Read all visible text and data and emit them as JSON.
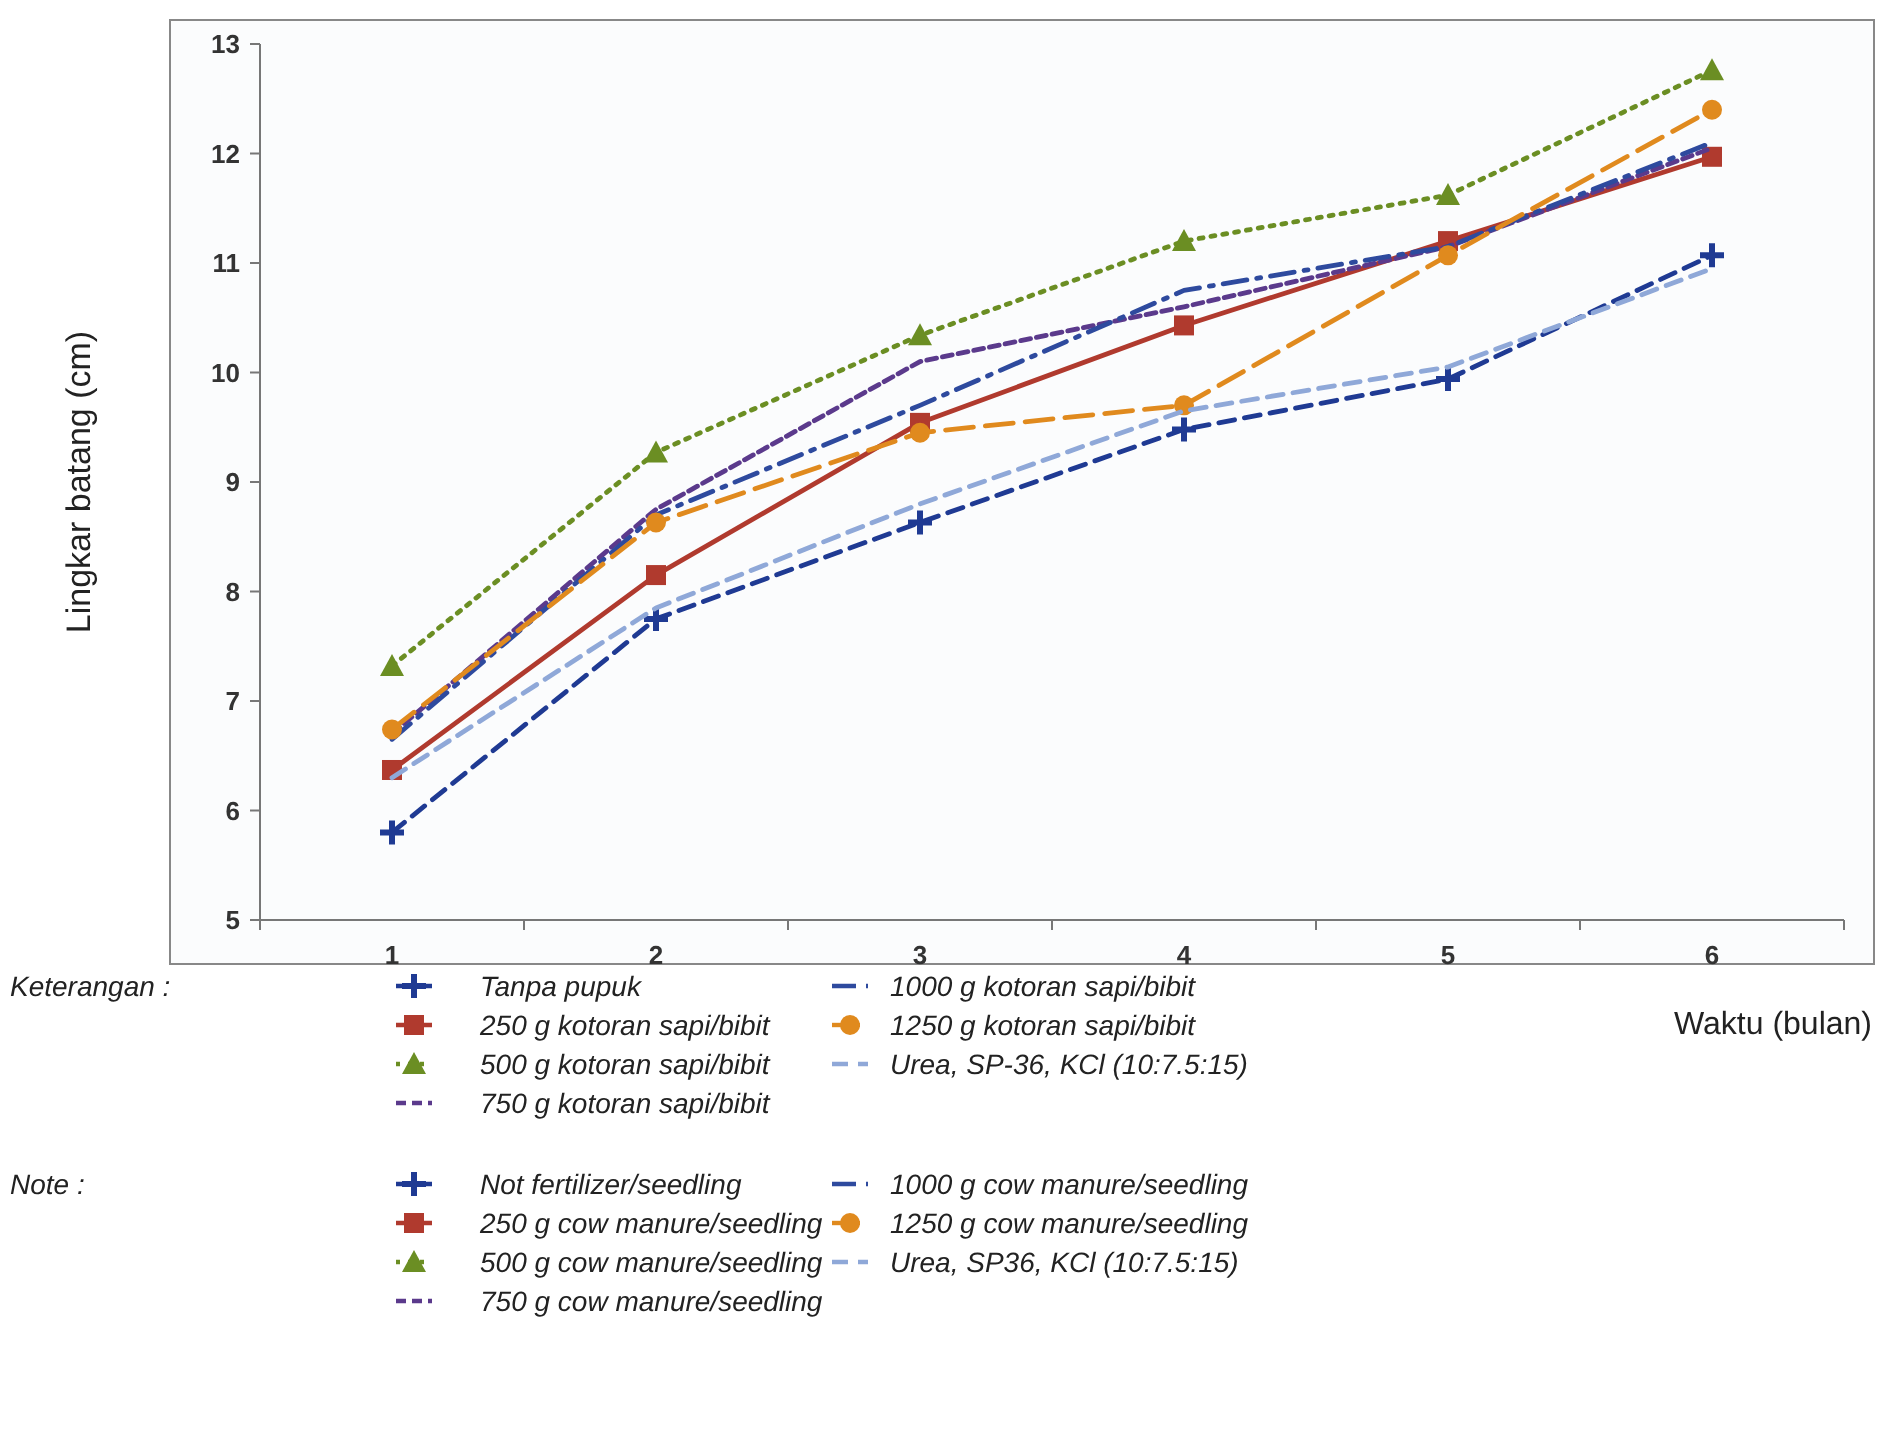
{
  "chart_data": {
    "type": "line",
    "xlabel": "Waktu (bulan)",
    "ylabel": "Lingkar batang (cm)",
    "legend_title": "Keterangan :",
    "categories": [
      "1",
      "2",
      "3",
      "4",
      "5",
      "6"
    ],
    "ylim": [
      5,
      13
    ],
    "yticks": [
      5,
      6,
      7,
      8,
      9,
      10,
      11,
      12,
      13
    ],
    "grid": false,
    "legend": "bottom",
    "series": [
      {
        "name": "Tanpa pupuk",
        "color": "#1f3a93",
        "marker": "cross",
        "line_style": "dashed",
        "values": [
          5.8,
          7.75,
          8.63,
          9.48,
          9.94,
          11.07
        ]
      },
      {
        "name": "250 g kotoran sapi/bibit",
        "color": "#b03a2e",
        "marker": "square",
        "line_style": "solid",
        "values": [
          6.37,
          8.15,
          9.54,
          10.43,
          11.2,
          11.97
        ]
      },
      {
        "name": "500 g kotoran sapi/bibit",
        "color": "#6b8e23",
        "marker": "triangle",
        "line_style": "dotted",
        "values": [
          7.32,
          9.27,
          10.34,
          11.2,
          11.62,
          12.76
        ]
      },
      {
        "name": "750 g kotoran sapi/bibit",
        "color": "#5b3a8c",
        "marker": "none",
        "line_style": "dashed",
        "values": [
          6.7,
          8.75,
          10.1,
          10.6,
          11.15,
          12.05
        ]
      },
      {
        "name": "1000 g kotoran sapi/bibit",
        "color": "#2e4a9e",
        "marker": "none",
        "line_style": "dashed",
        "values": [
          6.65,
          8.7,
          9.7,
          10.75,
          11.15,
          12.1
        ]
      },
      {
        "name": "1250 g kotoran sapi/bibit",
        "color": "#e08a1e",
        "marker": "circle",
        "line_style": "dashed",
        "values": [
          6.74,
          8.63,
          9.45,
          9.7,
          11.07,
          12.4
        ]
      },
      {
        "name": "Urea, SP-36, KCl (10:7.5:15)",
        "color": "#8fa8d8",
        "marker": "none",
        "line_style": "dashed",
        "values": [
          6.3,
          7.85,
          8.8,
          9.65,
          10.05,
          10.95
        ]
      }
    ],
    "annotations": [
      "Note :",
      "Not fertilizer/seedling",
      "250 g cow manure/seedling",
      "500 g cow manure/seedling",
      "750 g cow manure/seedling",
      "1000 g cow manure/seedling",
      "1250 g cow manure/seedling",
      "Urea, SP36, KCl (10:7.5:15)"
    ]
  }
}
